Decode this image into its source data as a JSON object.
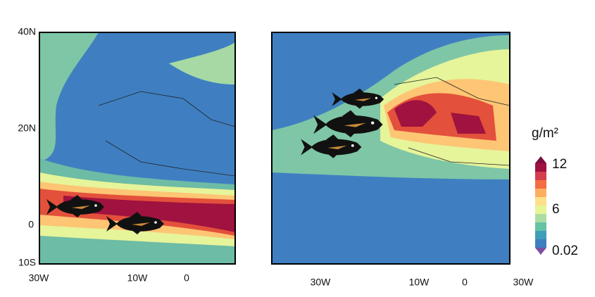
{
  "left_map": {
    "lat_labels": [
      "40N",
      "20N",
      "0",
      "10S"
    ],
    "lon_labels": [
      "30W",
      "10W",
      "0"
    ]
  },
  "right_map": {
    "lon_labels": [
      "30W",
      "10W",
      "0",
      "30W"
    ]
  },
  "colorbar": {
    "unit": "g/m²",
    "tick_labels": [
      "12",
      "6",
      "0.02"
    ]
  }
}
